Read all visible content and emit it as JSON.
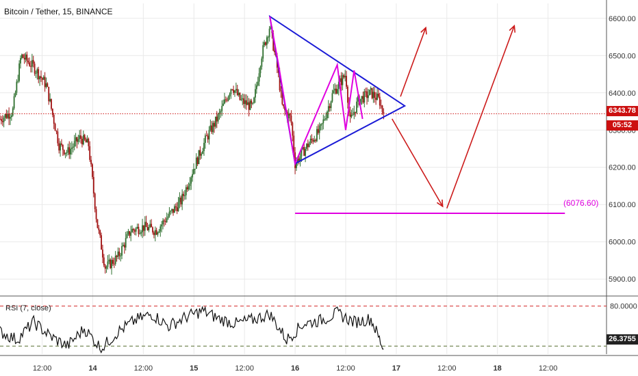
{
  "symbol_title": "Bitcoin / Tether, 15, BINANCE",
  "rsi_label": "RSI (7, close)",
  "colors": {
    "candle_up": "#2d6e2d",
    "candle_down": "#a01010",
    "triangle": "#1a1ad6",
    "wave": "#e000e0",
    "arrow": "#cc1b1b",
    "last_price": "#cc1010",
    "support": "#e000e0",
    "rsi_line": "#111111",
    "rsi_upper": "#d22222",
    "rsi_lower": "#556b2f",
    "grid": "#e9e9e9"
  },
  "last_price": {
    "value": "6343.78",
    "countdown": "05:52"
  },
  "support_level": {
    "value": 6076.6,
    "label": "(6076.60)"
  },
  "chart_data": [
    {
      "type": "candlestick",
      "title": "Bitcoin / Tether, 15, BINANCE",
      "ylim": [
        5860,
        6640
      ],
      "ytick_labels": [
        "5900.00",
        "6000.00",
        "6100.00",
        "6200.00",
        "6300.00",
        "6400.00",
        "6500.00",
        "6600.00"
      ],
      "yticks": [
        5900,
        6000,
        6100,
        6200,
        6300,
        6400,
        6500,
        6600
      ],
      "xtick_labels": [
        "12:00",
        "14",
        "12:00",
        "15",
        "12:00",
        "16",
        "12:00",
        "17",
        "12:00",
        "18",
        "12:00"
      ],
      "xticks": [
        12,
        24,
        36,
        48,
        60,
        72,
        84,
        96,
        108,
        120,
        132
      ],
      "xlim": [
        2,
        144
      ],
      "waypoints": [
        [
          2,
          6330
        ],
        [
          5,
          6350
        ],
        [
          7,
          6500
        ],
        [
          10,
          6470
        ],
        [
          13,
          6420
        ],
        [
          16,
          6260
        ],
        [
          18,
          6240
        ],
        [
          21,
          6280
        ],
        [
          23,
          6260
        ],
        [
          25,
          6050
        ],
        [
          27,
          5930
        ],
        [
          30,
          5960
        ],
        [
          33,
          6030
        ],
        [
          36,
          6040
        ],
        [
          39,
          6030
        ],
        [
          42,
          6070
        ],
        [
          45,
          6110
        ],
        [
          48,
          6200
        ],
        [
          51,
          6280
        ],
        [
          54,
          6340
        ],
        [
          57,
          6420
        ],
        [
          59,
          6380
        ],
        [
          62,
          6360
        ],
        [
          64,
          6500
        ],
        [
          66,
          6580
        ],
        [
          68,
          6450
        ],
        [
          69,
          6360
        ],
        [
          71,
          6330
        ],
        [
          72,
          6210
        ],
        [
          75,
          6260
        ],
        [
          78,
          6300
        ],
        [
          81,
          6400
        ],
        [
          84,
          6450
        ],
        [
          85,
          6320
        ],
        [
          87,
          6380
        ],
        [
          90,
          6400
        ],
        [
          92,
          6380
        ],
        [
          93,
          6340
        ]
      ],
      "last": 6343.78
    },
    {
      "type": "line",
      "title": "RSI (7, close)",
      "ylim": [
        20,
        90
      ],
      "ytick_labels": [
        "80.0000",
        "40.0000"
      ],
      "yticks": [
        80,
        40
      ],
      "levels": [
        80,
        30
      ],
      "x": [
        2,
        6,
        10,
        14,
        18,
        22,
        26,
        30,
        34,
        38,
        42,
        46,
        50,
        54,
        58,
        62,
        66,
        70,
        74,
        78,
        82,
        86,
        90,
        93
      ],
      "values": [
        48,
        38,
        60,
        42,
        30,
        52,
        27,
        48,
        62,
        70,
        55,
        66,
        74,
        64,
        58,
        63,
        70,
        38,
        58,
        62,
        71,
        60,
        64,
        26.3755
      ],
      "last_label": "26.3755"
    }
  ],
  "annotations": {
    "triangle": [
      [
        66,
        6605
      ],
      [
        72,
        6210
      ],
      [
        98,
        6365
      ]
    ],
    "wave": [
      [
        66,
        6605
      ],
      [
        68,
        6480
      ],
      [
        72,
        6210
      ],
      [
        82,
        6475
      ],
      [
        84,
        6300
      ],
      [
        86,
        6460
      ],
      [
        88,
        6330
      ]
    ],
    "arrows": [
      {
        "from": [
          97,
          6390
        ],
        "to": [
          103,
          6575
        ]
      },
      {
        "from": [
          95,
          6330
        ],
        "to": [
          107,
          6095
        ]
      },
      {
        "from": [
          108,
          6090
        ],
        "to": [
          124,
          6580
        ]
      }
    ],
    "support_segment": [
      72,
      136
    ]
  }
}
